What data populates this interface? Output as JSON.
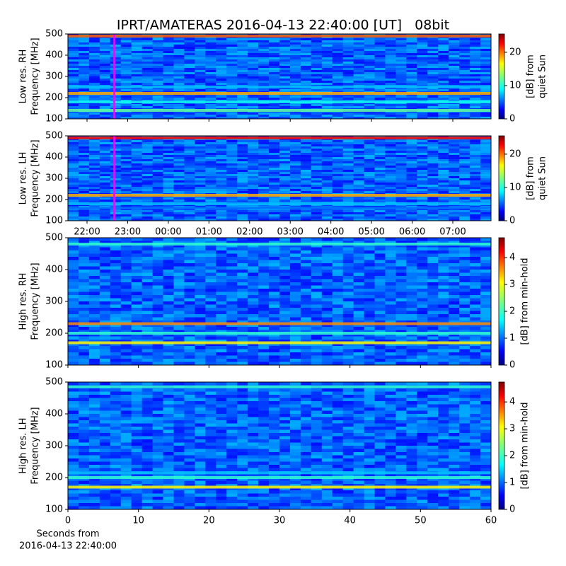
{
  "chart_data": [
    {
      "type": "heatmap",
      "title": "IPRT/AMATERAS 2016-04-13 22:40:00 [UT]   08bit",
      "ylabel": [
        "Low res. RH",
        "Frequency [MHz]"
      ],
      "ylim": [
        100,
        500
      ],
      "yticks": [
        100,
        200,
        300,
        400,
        500
      ],
      "xlim": [
        21.53,
        31.94
      ],
      "marker_x": 22.67,
      "marker_color": "#ff00ff",
      "clabel": [
        "[dB] from",
        "quiet Sun"
      ],
      "clim": [
        0,
        25.5
      ],
      "cticks": [
        0,
        10,
        20
      ],
      "features": [
        {
          "freq": 490,
          "level": 20
        },
        {
          "freq": 220,
          "level": 18
        },
        {
          "freq": 250,
          "level": 8
        },
        {
          "freq": 180,
          "level": 10
        },
        {
          "freq": 140,
          "level": 12
        }
      ]
    },
    {
      "type": "heatmap",
      "ylabel": [
        "Low res. LH",
        "Frequency [MHz]"
      ],
      "ylim": [
        100,
        500
      ],
      "yticks": [
        100,
        200,
        300,
        400,
        500
      ],
      "xlim": [
        21.53,
        31.94
      ],
      "xticks": [
        {
          "value": 22,
          "label": "22:00"
        },
        {
          "value": 23,
          "label": "23:00"
        },
        {
          "value": 24,
          "label": "00:00"
        },
        {
          "value": 25,
          "label": "01:00"
        },
        {
          "value": 26,
          "label": "02:00"
        },
        {
          "value": 27,
          "label": "03:00"
        },
        {
          "value": 28,
          "label": "04:00"
        },
        {
          "value": 29,
          "label": "05:00"
        },
        {
          "value": 30,
          "label": "06:00"
        },
        {
          "value": 31,
          "label": "07:00"
        }
      ],
      "marker_x": 22.67,
      "marker_color": "#ff00ff",
      "clabel": [
        "[dB] from",
        "quiet Sun"
      ],
      "clim": [
        0,
        25.5
      ],
      "cticks": [
        0,
        10,
        20
      ],
      "features": [
        {
          "freq": 490,
          "level": 22
        },
        {
          "freq": 220,
          "level": 18
        },
        {
          "freq": 180,
          "level": 8
        },
        {
          "freq": 160,
          "level": 6
        }
      ]
    },
    {
      "type": "heatmap",
      "ylabel": [
        "High res. RH",
        "Frequency [MHz]"
      ],
      "ylim": [
        100,
        500
      ],
      "yticks": [
        100,
        200,
        300,
        400,
        500
      ],
      "xlim": [
        0,
        60
      ],
      "clabel": [
        "[dB] from min-hold"
      ],
      "clim": [
        0,
        4.74
      ],
      "cticks": [
        0,
        1,
        2,
        3,
        4
      ],
      "features": [
        {
          "freq": 480,
          "level": 2
        },
        {
          "freq": 230,
          "level": 3.5
        },
        {
          "freq": 200,
          "level": 2
        },
        {
          "freq": 170,
          "level": 3
        }
      ]
    },
    {
      "type": "heatmap",
      "ylabel": [
        "High res. LH",
        "Frequency [MHz]"
      ],
      "ylim": [
        100,
        500
      ],
      "yticks": [
        100,
        200,
        300,
        400,
        500
      ],
      "xlim": [
        0,
        60
      ],
      "xticks": [
        0,
        10,
        20,
        30,
        40,
        50,
        60
      ],
      "xlabel": [
        "Seconds from",
        "2016-04-13 22:40:00"
      ],
      "clabel": [
        "[dB] from min-hold"
      ],
      "clim": [
        0,
        4.74
      ],
      "cticks": [
        0,
        1,
        2,
        3,
        4
      ],
      "features": [
        {
          "freq": 485,
          "level": 2
        },
        {
          "freq": 215,
          "level": 1.5
        },
        {
          "freq": 200,
          "level": 2
        },
        {
          "freq": 170,
          "level": 3
        }
      ]
    }
  ]
}
